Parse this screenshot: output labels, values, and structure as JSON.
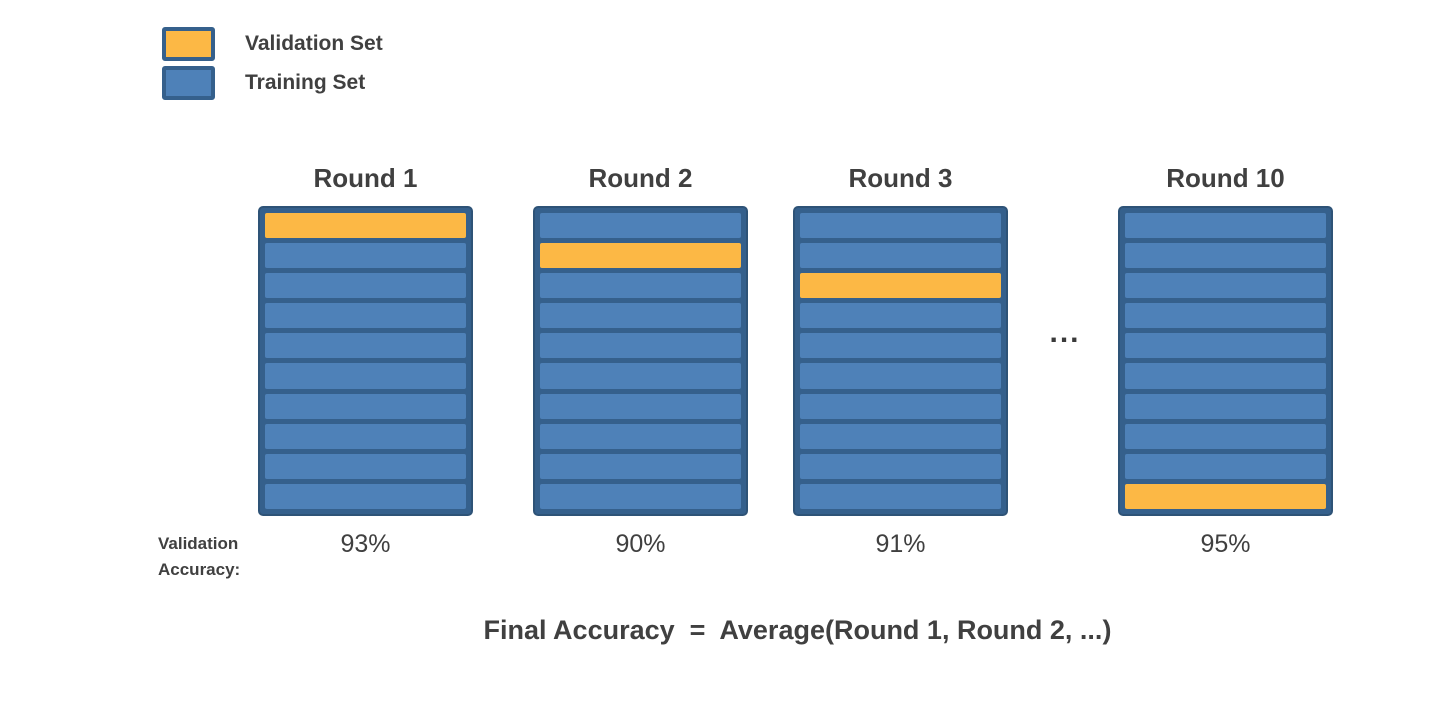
{
  "colors": {
    "validation_fill": "#FCB845",
    "training_fill": "#4E81B8",
    "border": "#35608C",
    "border_dark": "#2E5377",
    "text": "#404040"
  },
  "legend": {
    "items": [
      {
        "label": "Validation Set",
        "role": "validation"
      },
      {
        "label": "Training Set",
        "role": "training"
      }
    ]
  },
  "chart_data": {
    "type": "kfold-cross-validation-diagram",
    "folds_per_round": 10,
    "rounds": [
      {
        "title": "Round 1",
        "validation_fold": 1,
        "accuracy": "93%"
      },
      {
        "title": "Round 2",
        "validation_fold": 2,
        "accuracy": "90%"
      },
      {
        "title": "Round 3",
        "validation_fold": 3,
        "accuracy": "91%"
      },
      {
        "title": "Round 10",
        "validation_fold": 10,
        "accuracy": "95%"
      }
    ],
    "ellipsis": "...",
    "validation_accuracy_label": "Validation\nAccuracy:",
    "final_formula": "Final Accuracy  =  Average(Round 1, Round 2, ...)"
  }
}
